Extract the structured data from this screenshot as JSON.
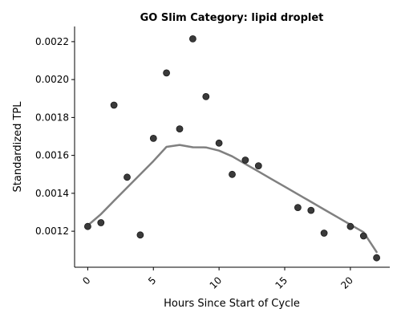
{
  "chart_data": {
    "type": "scatter",
    "title": "GO Slim Category: lipid droplet",
    "xlabel": "Hours Since Start of Cycle",
    "ylabel": "Standardized TPL",
    "xlim": [
      -1,
      23
    ],
    "ylim": [
      0.00101,
      0.00228
    ],
    "x_ticks": [
      0,
      5,
      10,
      15,
      20
    ],
    "y_ticks": [
      0.0012,
      0.0014,
      0.0016,
      0.0018,
      0.002,
      0.0022
    ],
    "x_tick_labels": [
      "0",
      "5",
      "10",
      "15",
      "20"
    ],
    "y_tick_labels": [
      "0.0012",
      "0.0014",
      "0.0016",
      "0.0018",
      "0.0020",
      "0.0022"
    ],
    "grid": false,
    "series": [
      {
        "type": "scatter",
        "color": "#3a3a3a",
        "x": [
          0,
          1,
          2,
          3,
          4,
          5,
          6,
          7,
          8,
          9,
          10,
          11,
          12,
          13,
          16,
          17,
          18,
          20,
          21,
          22
        ],
        "y": [
          0.001225,
          0.001245,
          0.001865,
          0.001485,
          0.00118,
          0.00169,
          0.002035,
          0.00174,
          0.002215,
          0.00191,
          0.001665,
          0.0015,
          0.001575,
          0.001545,
          0.001325,
          0.00131,
          0.00119,
          0.001225,
          0.001175,
          0.00106
        ]
      },
      {
        "type": "line",
        "color": "#808080",
        "x": [
          0,
          1,
          2,
          3,
          4,
          5,
          6,
          7,
          8,
          9,
          10,
          11,
          12,
          13,
          14,
          15,
          16,
          17,
          18,
          19,
          20,
          21,
          22
        ],
        "y": [
          0.00123,
          0.00129,
          0.00136,
          0.00143,
          0.0015,
          0.00157,
          0.001645,
          0.001655,
          0.001643,
          0.001642,
          0.001625,
          0.001595,
          0.001555,
          0.001515,
          0.001475,
          0.001435,
          0.001395,
          0.001355,
          0.001315,
          0.001275,
          0.001235,
          0.001195,
          0.00109
        ]
      }
    ]
  }
}
